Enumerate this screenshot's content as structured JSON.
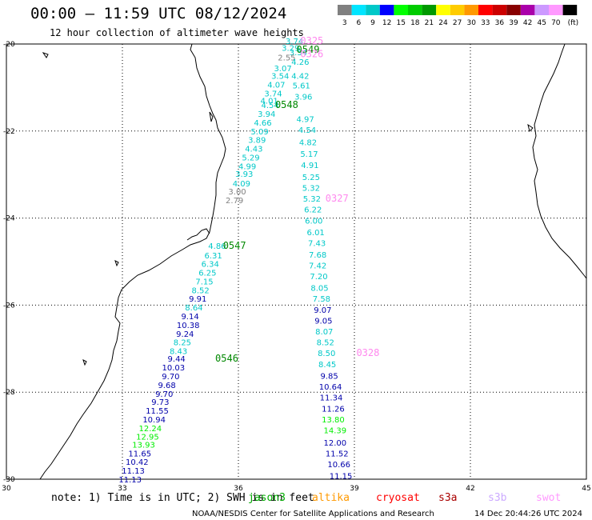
{
  "header": {
    "title": "00:00 – 11:59 UTC 08/12/2024",
    "subtitle": "12 hour collection of altimeter wave heights"
  },
  "colorbar": {
    "unit": "(ft)",
    "segments": [
      {
        "label": "3",
        "color": "#808080"
      },
      {
        "label": "6",
        "color": "#00e5ff"
      },
      {
        "label": "9",
        "color": "#00c8c8"
      },
      {
        "label": "12",
        "color": "#0000ff"
      },
      {
        "label": "15",
        "color": "#00ff00"
      },
      {
        "label": "18",
        "color": "#00cc00"
      },
      {
        "label": "21",
        "color": "#009900"
      },
      {
        "label": "24",
        "color": "#ffff00"
      },
      {
        "label": "27",
        "color": "#ffcc00"
      },
      {
        "label": "30",
        "color": "#ff9900"
      },
      {
        "label": "33",
        "color": "#ff0000"
      },
      {
        "label": "36",
        "color": "#cc0000"
      },
      {
        "label": "39",
        "color": "#880000"
      },
      {
        "label": "42",
        "color": "#aa00aa"
      },
      {
        "label": "45",
        "color": "#cc99ff"
      },
      {
        "label": "70",
        "color": "#ff99ff"
      },
      {
        "label": "",
        "color": "#000000"
      }
    ]
  },
  "map": {
    "lat_ticks": [
      "-20",
      "-22",
      "-24",
      "-26",
      "-28",
      "-30"
    ],
    "lon_ticks": [
      "30",
      "33",
      "36",
      "39",
      "42",
      "45"
    ],
    "lat_range": [
      -30,
      -20
    ],
    "lon_range": [
      30,
      45
    ],
    "grid": "dotted"
  },
  "tracks": [
    {
      "name": "ascending_pass",
      "labels": [
        {
          "v": "3.74",
          "lat": -19.93,
          "lon": 37.45,
          "c": "#00c8c8"
        },
        {
          "v": "3.29",
          "lat": -20.08,
          "lon": 37.35,
          "c": "#00c8c8"
        },
        {
          "v": "3.54",
          "lat": -20.18,
          "lon": 37.55,
          "c": "#00c8c8"
        },
        {
          "v": "2.55",
          "lat": -20.3,
          "lon": 37.25,
          "c": "#808080"
        },
        {
          "v": "4.26",
          "lat": -20.4,
          "lon": 37.6,
          "c": "#00c8c8"
        },
        {
          "v": "3.07",
          "lat": -20.55,
          "lon": 37.15,
          "c": "#00c8c8"
        },
        {
          "v": "3.54",
          "lat": -20.73,
          "lon": 37.08,
          "c": "#00c8c8"
        },
        {
          "v": "4.42",
          "lat": -20.73,
          "lon": 37.6,
          "c": "#00c8c8"
        },
        {
          "v": "4.07",
          "lat": -20.93,
          "lon": 36.98,
          "c": "#00c8c8"
        },
        {
          "v": "5.61",
          "lat": -20.95,
          "lon": 37.63,
          "c": "#00c8c8"
        },
        {
          "v": "3.74",
          "lat": -21.13,
          "lon": 36.9,
          "c": "#00c8c8"
        },
        {
          "v": "3.96",
          "lat": -21.2,
          "lon": 37.68,
          "c": "#00c8c8"
        },
        {
          "v": "4.01",
          "lat": -21.3,
          "lon": 36.8,
          "c": "#00c8c8"
        },
        {
          "v": "4.54",
          "lat": -21.4,
          "lon": 36.82,
          "c": "#00c8c8"
        },
        {
          "v": "3.94",
          "lat": -21.6,
          "lon": 36.73,
          "c": "#00c8c8"
        },
        {
          "v": "4.97",
          "lat": -21.72,
          "lon": 37.73,
          "c": "#00c8c8"
        },
        {
          "v": "4.66",
          "lat": -21.8,
          "lon": 36.63,
          "c": "#00c8c8"
        },
        {
          "v": "4.54",
          "lat": -21.97,
          "lon": 37.78,
          "c": "#00c8c8"
        },
        {
          "v": "5.09",
          "lat": -22.0,
          "lon": 36.55,
          "c": "#00c8c8"
        },
        {
          "v": "3.89",
          "lat": -22.2,
          "lon": 36.48,
          "c": "#00c8c8"
        },
        {
          "v": "4.82",
          "lat": -22.25,
          "lon": 37.8,
          "c": "#00c8c8"
        },
        {
          "v": "4.43",
          "lat": -22.4,
          "lon": 36.4,
          "c": "#00c8c8"
        },
        {
          "v": "5.17",
          "lat": -22.52,
          "lon": 37.83,
          "c": "#00c8c8"
        },
        {
          "v": "5.29",
          "lat": -22.6,
          "lon": 36.32,
          "c": "#00c8c8"
        },
        {
          "v": "4.91",
          "lat": -22.78,
          "lon": 37.85,
          "c": "#00c8c8"
        },
        {
          "v": "4.99",
          "lat": -22.8,
          "lon": 36.23,
          "c": "#00c8c8"
        },
        {
          "v": "3.93",
          "lat": -22.98,
          "lon": 36.15,
          "c": "#00c8c8"
        },
        {
          "v": "5.25",
          "lat": -23.05,
          "lon": 37.88,
          "c": "#00c8c8"
        },
        {
          "v": "4.09",
          "lat": -23.2,
          "lon": 36.08,
          "c": "#00c8c8"
        },
        {
          "v": "5.32",
          "lat": -23.3,
          "lon": 37.88,
          "c": "#00c8c8"
        },
        {
          "v": "3.00",
          "lat": -23.38,
          "lon": 35.97,
          "c": "#808080"
        },
        {
          "v": "5.32",
          "lat": -23.55,
          "lon": 37.9,
          "c": "#00c8c8"
        },
        {
          "v": "2.79",
          "lat": -23.58,
          "lon": 35.9,
          "c": "#808080"
        },
        {
          "v": "6.22",
          "lat": -23.8,
          "lon": 37.93,
          "c": "#00c8c8"
        },
        {
          "v": "6.00",
          "lat": -24.05,
          "lon": 37.95,
          "c": "#00c8c8"
        },
        {
          "v": "6.01",
          "lat": -24.32,
          "lon": 38.0,
          "c": "#00c8c8"
        },
        {
          "v": "7.43",
          "lat": -24.57,
          "lon": 38.03,
          "c": "#00c8c8"
        },
        {
          "v": "4.86",
          "lat": -24.63,
          "lon": 35.45,
          "c": "#00c8c8"
        },
        {
          "v": "7.68",
          "lat": -24.83,
          "lon": 38.05,
          "c": "#00c8c8"
        },
        {
          "v": "6.31",
          "lat": -24.85,
          "lon": 35.35,
          "c": "#00c8c8"
        },
        {
          "v": "6.34",
          "lat": -25.05,
          "lon": 35.27,
          "c": "#00c8c8"
        },
        {
          "v": "7.42",
          "lat": -25.08,
          "lon": 38.05,
          "c": "#00c8c8"
        },
        {
          "v": "6.25",
          "lat": -25.25,
          "lon": 35.2,
          "c": "#00c8c8"
        },
        {
          "v": "7.20",
          "lat": -25.33,
          "lon": 38.08,
          "c": "#00c8c8"
        },
        {
          "v": "7.15",
          "lat": -25.45,
          "lon": 35.12,
          "c": "#00c8c8"
        },
        {
          "v": "8.05",
          "lat": -25.6,
          "lon": 38.1,
          "c": "#00c8c8"
        },
        {
          "v": "8.52",
          "lat": -25.65,
          "lon": 35.02,
          "c": "#00c8c8"
        },
        {
          "v": "7.58",
          "lat": -25.85,
          "lon": 38.15,
          "c": "#00c8c8"
        },
        {
          "v": "9.91",
          "lat": -25.85,
          "lon": 34.95,
          "c": "#0000aa"
        },
        {
          "v": "8.64",
          "lat": -26.05,
          "lon": 34.85,
          "c": "#00c8c8"
        },
        {
          "v": "9.07",
          "lat": -26.1,
          "lon": 38.18,
          "c": "#0000aa"
        },
        {
          "v": "9.14",
          "lat": -26.25,
          "lon": 34.75,
          "c": "#0000aa"
        },
        {
          "v": "9.05",
          "lat": -26.35,
          "lon": 38.2,
          "c": "#0000aa"
        },
        {
          "v": "10.38",
          "lat": -26.45,
          "lon": 34.7,
          "c": "#0000aa"
        },
        {
          "v": "8.07",
          "lat": -26.6,
          "lon": 38.22,
          "c": "#00c8c8"
        },
        {
          "v": "9.24",
          "lat": -26.65,
          "lon": 34.62,
          "c": "#0000aa"
        },
        {
          "v": "8.52",
          "lat": -26.85,
          "lon": 38.25,
          "c": "#00c8c8"
        },
        {
          "v": "8.25",
          "lat": -26.85,
          "lon": 34.55,
          "c": "#00c8c8"
        },
        {
          "v": "8.43",
          "lat": -27.05,
          "lon": 34.45,
          "c": "#00c8c8"
        },
        {
          "v": "8.50",
          "lat": -27.1,
          "lon": 38.28,
          "c": "#00c8c8"
        },
        {
          "v": "9.44",
          "lat": -27.22,
          "lon": 34.4,
          "c": "#0000aa"
        },
        {
          "v": "8.45",
          "lat": -27.35,
          "lon": 38.3,
          "c": "#00c8c8"
        },
        {
          "v": "10.03",
          "lat": -27.43,
          "lon": 34.32,
          "c": "#0000aa"
        },
        {
          "v": "9.70",
          "lat": -27.63,
          "lon": 34.25,
          "c": "#0000aa"
        },
        {
          "v": "9.85",
          "lat": -27.62,
          "lon": 38.35,
          "c": "#0000aa"
        },
        {
          "v": "9.68",
          "lat": -27.83,
          "lon": 34.15,
          "c": "#0000aa"
        },
        {
          "v": "10.64",
          "lat": -27.87,
          "lon": 38.38,
          "c": "#0000aa"
        },
        {
          "v": "9.70",
          "lat": -28.03,
          "lon": 34.08,
          "c": "#0000aa"
        },
        {
          "v": "11.34",
          "lat": -28.12,
          "lon": 38.4,
          "c": "#0000aa"
        },
        {
          "v": "9.73",
          "lat": -28.22,
          "lon": 33.98,
          "c": "#0000aa"
        },
        {
          "v": "11.26",
          "lat": -28.37,
          "lon": 38.45,
          "c": "#0000aa"
        },
        {
          "v": "11.55",
          "lat": -28.42,
          "lon": 33.9,
          "c": "#0000aa"
        },
        {
          "v": "10.94",
          "lat": -28.62,
          "lon": 33.82,
          "c": "#0000aa"
        },
        {
          "v": "13.80",
          "lat": -28.62,
          "lon": 38.45,
          "c": "#00ee00"
        },
        {
          "v": "12.24",
          "lat": -28.82,
          "lon": 33.72,
          "c": "#00ee00"
        },
        {
          "v": "14.39",
          "lat": -28.87,
          "lon": 38.5,
          "c": "#00ee00"
        },
        {
          "v": "12.95",
          "lat": -29.02,
          "lon": 33.65,
          "c": "#00ee00"
        },
        {
          "v": "13.93",
          "lat": -29.2,
          "lon": 33.55,
          "c": "#00ee00"
        },
        {
          "v": "12.00",
          "lat": -29.15,
          "lon": 38.5,
          "c": "#0000aa"
        },
        {
          "v": "11.65",
          "lat": -29.4,
          "lon": 33.45,
          "c": "#0000aa"
        },
        {
          "v": "11.52",
          "lat": -29.4,
          "lon": 38.55,
          "c": "#0000aa"
        },
        {
          "v": "10.42",
          "lat": -29.6,
          "lon": 33.38,
          "c": "#0000aa"
        },
        {
          "v": "10.66",
          "lat": -29.65,
          "lon": 38.6,
          "c": "#0000aa"
        },
        {
          "v": "11.13",
          "lat": -29.8,
          "lon": 33.28,
          "c": "#0000aa"
        },
        {
          "v": "11.15",
          "lat": -29.92,
          "lon": 38.65,
          "c": "#0000aa"
        },
        {
          "v": "11.13",
          "lat": -30.0,
          "lon": 33.2,
          "c": "#0000aa"
        }
      ]
    }
  ],
  "time_labels": [
    {
      "text": "0325",
      "lat": -19.93,
      "lon": 37.9,
      "c": "#ff88ee"
    },
    {
      "text": "0549",
      "lat": -20.13,
      "lon": 37.8,
      "c": "#008800"
    },
    {
      "text": "0326",
      "lat": -20.23,
      "lon": 37.9,
      "c": "#ff88ee"
    },
    {
      "text": "0548",
      "lat": -21.4,
      "lon": 37.25,
      "c": "#008800"
    },
    {
      "text": "0327",
      "lat": -23.55,
      "lon": 38.55,
      "c": "#ff88ee"
    },
    {
      "text": "0547",
      "lat": -24.63,
      "lon": 35.9,
      "c": "#008800"
    },
    {
      "text": "0328",
      "lat": -27.1,
      "lon": 39.35,
      "c": "#ff88ee"
    },
    {
      "text": "0546",
      "lat": -27.22,
      "lon": 35.7,
      "c": "#008800"
    }
  ],
  "footer": {
    "note": "note: 1) Time is in UTC; 2) SWH is in feet",
    "legend": [
      {
        "text": "jason3",
        "color": "#00aa00"
      },
      {
        "text": "altika",
        "color": "#ff9900"
      },
      {
        "text": "cryosat",
        "color": "#ff0000"
      },
      {
        "text": "s3a",
        "color": "#aa0000"
      },
      {
        "text": "s3b",
        "color": "#ccaaff"
      },
      {
        "text": "swot",
        "color": "#ff99ff"
      }
    ],
    "credit": "NOAA/NESDIS Center for Satellite Applications and Research",
    "timestamp": "14 Dec 20:44:26 UTC 2024"
  }
}
